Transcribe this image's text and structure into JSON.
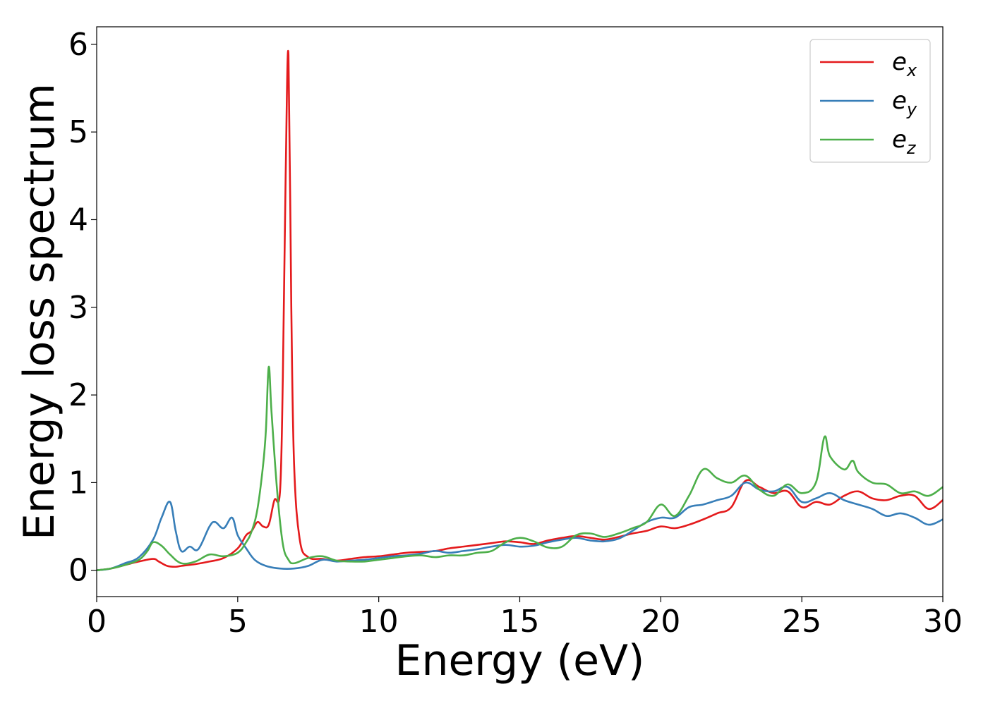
{
  "chart_data": {
    "type": "line",
    "title": "",
    "xlabel": "Energy (eV)",
    "ylabel": "Energy loss spectrum",
    "xlim": [
      0,
      30
    ],
    "ylim": [
      -0.3,
      6.2
    ],
    "xticks": [
      0,
      5,
      10,
      15,
      20,
      25,
      30
    ],
    "xtick_labels": [
      "0",
      "5",
      "10",
      "15",
      "20",
      "25",
      "30"
    ],
    "yticks": [
      0,
      1,
      2,
      3,
      4,
      5,
      6
    ],
    "ytick_labels": [
      "0",
      "1",
      "2",
      "3",
      "4",
      "5",
      "6"
    ],
    "grid": false,
    "legend_position": "top-right",
    "series": [
      {
        "name": "e",
        "subscript": "x",
        "color": "#e41a1c",
        "x": [
          0,
          0.5,
          1.0,
          1.5,
          2.0,
          2.2,
          2.5,
          2.8,
          3.0,
          3.5,
          4.0,
          4.5,
          5.0,
          5.3,
          5.5,
          5.7,
          5.9,
          6.1,
          6.3,
          6.5,
          6.6,
          6.7,
          6.8,
          6.9,
          7.0,
          7.2,
          7.5,
          8.0,
          8.5,
          9.0,
          9.5,
          10.0,
          10.5,
          11.0,
          11.5,
          12.0,
          12.5,
          13.0,
          13.5,
          14.0,
          14.5,
          15.0,
          15.5,
          16.0,
          16.5,
          17.0,
          17.5,
          18.0,
          18.5,
          19.0,
          19.5,
          20.0,
          20.5,
          21.0,
          21.5,
          22.0,
          22.5,
          23.0,
          23.5,
          24.0,
          24.5,
          25.0,
          25.5,
          26.0,
          26.5,
          27.0,
          27.5,
          28.0,
          28.5,
          29.0,
          29.5,
          30.0
        ],
        "y": [
          0.0,
          0.02,
          0.06,
          0.1,
          0.13,
          0.1,
          0.05,
          0.04,
          0.05,
          0.07,
          0.1,
          0.14,
          0.25,
          0.4,
          0.45,
          0.55,
          0.5,
          0.52,
          0.8,
          0.9,
          2.2,
          4.5,
          5.88,
          3.0,
          1.2,
          0.35,
          0.15,
          0.13,
          0.11,
          0.13,
          0.15,
          0.16,
          0.18,
          0.2,
          0.21,
          0.22,
          0.25,
          0.27,
          0.29,
          0.31,
          0.33,
          0.32,
          0.3,
          0.34,
          0.37,
          0.39,
          0.37,
          0.35,
          0.38,
          0.42,
          0.45,
          0.5,
          0.48,
          0.52,
          0.58,
          0.65,
          0.72,
          1.02,
          0.95,
          0.88,
          0.9,
          0.72,
          0.78,
          0.75,
          0.85,
          0.9,
          0.82,
          0.8,
          0.85,
          0.85,
          0.7,
          0.8
        ]
      },
      {
        "name": "e",
        "subscript": "y",
        "color": "#377eb8",
        "x": [
          0,
          0.5,
          1.0,
          1.5,
          2.0,
          2.3,
          2.6,
          2.8,
          3.0,
          3.3,
          3.6,
          4.0,
          4.2,
          4.5,
          4.8,
          5.0,
          5.3,
          5.6,
          6.0,
          6.5,
          7.0,
          7.5,
          8.0,
          8.5,
          9.0,
          9.5,
          10.0,
          10.5,
          11.0,
          11.5,
          12.0,
          12.5,
          13.0,
          13.5,
          14.0,
          14.5,
          15.0,
          15.5,
          16.0,
          16.5,
          17.0,
          17.5,
          18.0,
          18.5,
          19.0,
          19.5,
          20.0,
          20.5,
          21.0,
          21.5,
          22.0,
          22.5,
          23.0,
          23.5,
          24.0,
          24.5,
          25.0,
          25.5,
          26.0,
          26.5,
          27.0,
          27.5,
          28.0,
          28.5,
          29.0,
          29.5,
          30.0
        ],
        "y": [
          0.0,
          0.02,
          0.08,
          0.15,
          0.35,
          0.6,
          0.78,
          0.45,
          0.22,
          0.27,
          0.24,
          0.5,
          0.55,
          0.48,
          0.6,
          0.4,
          0.25,
          0.12,
          0.05,
          0.02,
          0.02,
          0.05,
          0.12,
          0.1,
          0.11,
          0.12,
          0.14,
          0.16,
          0.17,
          0.19,
          0.22,
          0.2,
          0.22,
          0.24,
          0.27,
          0.29,
          0.27,
          0.28,
          0.32,
          0.35,
          0.37,
          0.34,
          0.33,
          0.36,
          0.45,
          0.55,
          0.6,
          0.6,
          0.72,
          0.75,
          0.8,
          0.85,
          1.0,
          0.92,
          0.9,
          0.95,
          0.78,
          0.82,
          0.88,
          0.8,
          0.75,
          0.7,
          0.62,
          0.65,
          0.6,
          0.52,
          0.58
        ]
      },
      {
        "name": "e",
        "subscript": "z",
        "color": "#4daf4a",
        "x": [
          0,
          0.5,
          1.0,
          1.5,
          1.8,
          2.0,
          2.3,
          2.6,
          3.0,
          3.5,
          4.0,
          4.5,
          5.0,
          5.3,
          5.5,
          5.7,
          5.9,
          6.0,
          6.1,
          6.2,
          6.4,
          6.6,
          6.8,
          7.0,
          7.5,
          8.0,
          8.5,
          9.0,
          9.5,
          10.0,
          10.5,
          11.0,
          11.5,
          12.0,
          12.5,
          13.0,
          13.5,
          14.0,
          14.5,
          15.0,
          15.5,
          16.0,
          16.5,
          17.0,
          17.5,
          18.0,
          18.5,
          19.0,
          19.5,
          20.0,
          20.5,
          21.0,
          21.5,
          22.0,
          22.5,
          23.0,
          23.5,
          24.0,
          24.5,
          25.0,
          25.5,
          25.8,
          26.0,
          26.5,
          26.8,
          27.0,
          27.5,
          28.0,
          28.5,
          29.0,
          29.5,
          30.0
        ],
        "y": [
          0.0,
          0.02,
          0.06,
          0.12,
          0.22,
          0.32,
          0.28,
          0.18,
          0.08,
          0.1,
          0.18,
          0.16,
          0.2,
          0.32,
          0.45,
          0.7,
          1.2,
          1.6,
          2.32,
          1.8,
          0.9,
          0.3,
          0.12,
          0.08,
          0.14,
          0.16,
          0.11,
          0.1,
          0.1,
          0.12,
          0.14,
          0.16,
          0.17,
          0.15,
          0.17,
          0.17,
          0.2,
          0.22,
          0.32,
          0.37,
          0.33,
          0.26,
          0.27,
          0.4,
          0.42,
          0.38,
          0.42,
          0.48,
          0.55,
          0.75,
          0.62,
          0.85,
          1.15,
          1.05,
          1.0,
          1.08,
          0.92,
          0.85,
          0.98,
          0.88,
          1.0,
          1.52,
          1.3,
          1.15,
          1.25,
          1.12,
          1.0,
          0.98,
          0.88,
          0.9,
          0.85,
          0.95
        ]
      }
    ]
  }
}
